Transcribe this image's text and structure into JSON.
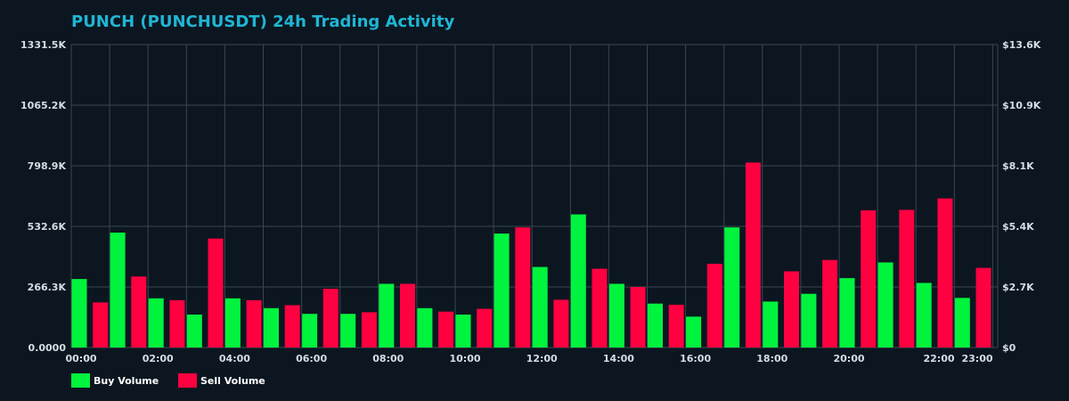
{
  "chart_data": {
    "type": "bar",
    "title": "PUNCH (PUNCHUSDT) 24h Trading Activity",
    "colors": {
      "buy": "#00f33d",
      "sell": "#ff0040",
      "background": "#0c1620",
      "grid": "#3a4650",
      "title": "#1fb6d4"
    },
    "grid": true,
    "legend_placement": "bottom-left",
    "y_left": {
      "range": [
        0,
        1331.5
      ],
      "tick_values": [
        0,
        266.3,
        532.6,
        798.9,
        1065.2,
        1331.5
      ],
      "tick_labels": [
        "0.0000",
        "266.3K",
        "532.6K",
        "798.9K",
        "1065.2K",
        "1331.5K"
      ]
    },
    "y_right": {
      "tick_labels": [
        "$0",
        "$2.7K",
        "$5.4K",
        "$8.1K",
        "$10.9K",
        "$13.6K"
      ]
    },
    "x_tick_labels": [
      {
        "hour": 0,
        "label": "00:00"
      },
      {
        "hour": 2,
        "label": "02:00"
      },
      {
        "hour": 4,
        "label": "04:00"
      },
      {
        "hour": 6,
        "label": "06:00"
      },
      {
        "hour": 8,
        "label": "08:00"
      },
      {
        "hour": 10,
        "label": "10:00"
      },
      {
        "hour": 12,
        "label": "12:00"
      },
      {
        "hour": 14,
        "label": "14:00"
      },
      {
        "hour": 16,
        "label": "16:00"
      },
      {
        "hour": 18,
        "label": "18:00"
      },
      {
        "hour": 20,
        "label": "20:00"
      },
      {
        "hour": 22,
        "label": "22:00"
      },
      {
        "hour": 23,
        "label": "23:00"
      }
    ],
    "bars": [
      {
        "hour": 0,
        "type": "buy",
        "value": 301
      },
      {
        "hour": 0.55,
        "type": "sell",
        "value": 198
      },
      {
        "hour": 1,
        "type": "buy",
        "value": 505
      },
      {
        "hour": 1.55,
        "type": "sell",
        "value": 312
      },
      {
        "hour": 2,
        "type": "buy",
        "value": 216
      },
      {
        "hour": 2.55,
        "type": "sell",
        "value": 208
      },
      {
        "hour": 3,
        "type": "buy",
        "value": 145
      },
      {
        "hour": 3.55,
        "type": "sell",
        "value": 479
      },
      {
        "hour": 4,
        "type": "buy",
        "value": 216
      },
      {
        "hour": 4.55,
        "type": "sell",
        "value": 208
      },
      {
        "hour": 5,
        "type": "buy",
        "value": 173
      },
      {
        "hour": 5.55,
        "type": "sell",
        "value": 186
      },
      {
        "hour": 6,
        "type": "buy",
        "value": 148
      },
      {
        "hour": 6.55,
        "type": "sell",
        "value": 258
      },
      {
        "hour": 7,
        "type": "buy",
        "value": 148
      },
      {
        "hour": 7.55,
        "type": "sell",
        "value": 155
      },
      {
        "hour": 8,
        "type": "buy",
        "value": 280
      },
      {
        "hour": 8.55,
        "type": "sell",
        "value": 280
      },
      {
        "hour": 9,
        "type": "buy",
        "value": 173
      },
      {
        "hour": 9.55,
        "type": "sell",
        "value": 158
      },
      {
        "hour": 10,
        "type": "buy",
        "value": 145
      },
      {
        "hour": 10.55,
        "type": "sell",
        "value": 170
      },
      {
        "hour": 11,
        "type": "buy",
        "value": 501
      },
      {
        "hour": 11.55,
        "type": "sell",
        "value": 528
      },
      {
        "hour": 12,
        "type": "buy",
        "value": 354
      },
      {
        "hour": 12.55,
        "type": "sell",
        "value": 210
      },
      {
        "hour": 13,
        "type": "buy",
        "value": 585
      },
      {
        "hour": 13.55,
        "type": "sell",
        "value": 346
      },
      {
        "hour": 14,
        "type": "buy",
        "value": 280
      },
      {
        "hour": 14.55,
        "type": "sell",
        "value": 266
      },
      {
        "hour": 15,
        "type": "buy",
        "value": 193
      },
      {
        "hour": 15.55,
        "type": "sell",
        "value": 188
      },
      {
        "hour": 16,
        "type": "buy",
        "value": 136
      },
      {
        "hour": 16.55,
        "type": "sell",
        "value": 368
      },
      {
        "hour": 17,
        "type": "buy",
        "value": 528
      },
      {
        "hour": 17.55,
        "type": "sell",
        "value": 813
      },
      {
        "hour": 18,
        "type": "buy",
        "value": 202
      },
      {
        "hour": 18.55,
        "type": "sell",
        "value": 335
      },
      {
        "hour": 19,
        "type": "buy",
        "value": 236
      },
      {
        "hour": 19.55,
        "type": "sell",
        "value": 385
      },
      {
        "hour": 20,
        "type": "buy",
        "value": 305
      },
      {
        "hour": 20.55,
        "type": "sell",
        "value": 603
      },
      {
        "hour": 21,
        "type": "buy",
        "value": 374
      },
      {
        "hour": 21.55,
        "type": "sell",
        "value": 605
      },
      {
        "hour": 22,
        "type": "buy",
        "value": 284
      },
      {
        "hour": 22.55,
        "type": "sell",
        "value": 655
      },
      {
        "hour": 23,
        "type": "buy",
        "value": 218
      },
      {
        "hour": 23.55,
        "type": "sell",
        "value": 350
      }
    ],
    "legend": [
      {
        "type": "buy",
        "label": "Buy Volume"
      },
      {
        "type": "sell",
        "label": "Sell Volume"
      }
    ]
  }
}
